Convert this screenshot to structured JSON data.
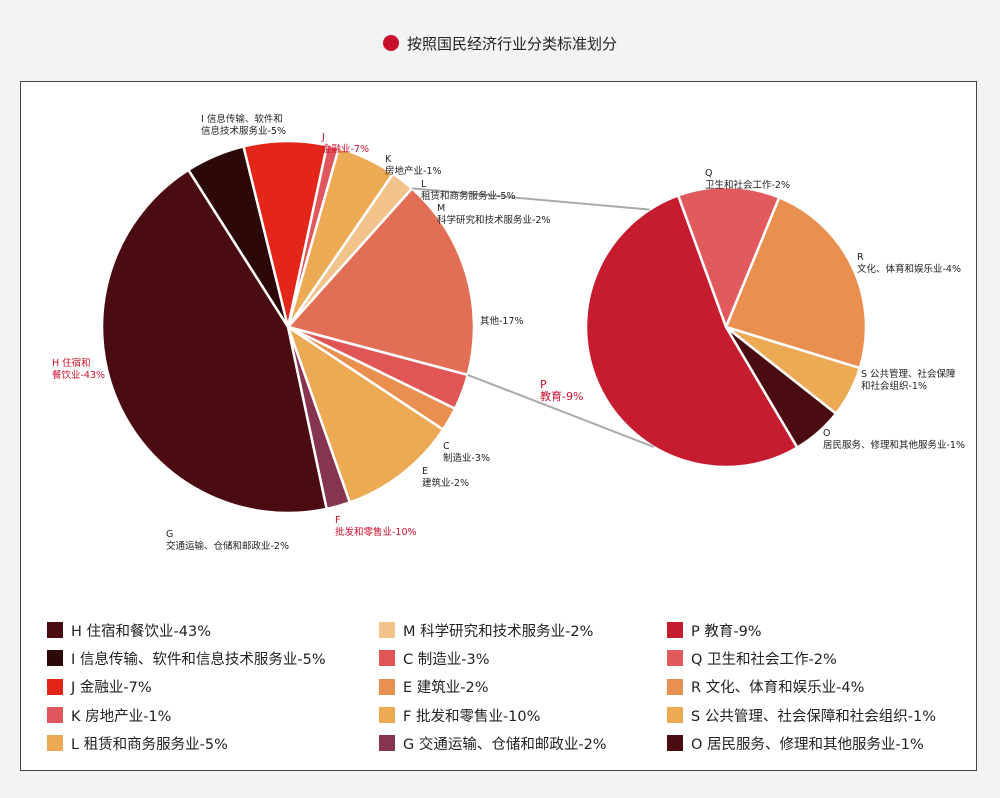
{
  "header": {
    "title": "按照国民经济行业分类标准划分",
    "dot_color": "#c8102e"
  },
  "chart_data": {
    "type": "pie",
    "subtype": "pie-of-pie",
    "title": "按照国民经济行业分类标准划分",
    "main_pie": {
      "slices": [
        {
          "code": "I",
          "label": "I 信息传输、软件和信息技术服务业-5%",
          "chart_label": "I 信息传输、软件和 信息技术服务业-5%",
          "value": 5,
          "color": "#2c0808"
        },
        {
          "code": "J",
          "label": "J 金融业-7%",
          "chart_label": "J 金融业-7%",
          "value": 7,
          "color": "#e32619"
        },
        {
          "code": "K",
          "label": "K 房地产业-1%",
          "chart_label": "K 房地产业-1%",
          "value": 1,
          "color": "#e0565d"
        },
        {
          "code": "L",
          "label": "L 租赁和商务服务业-5%",
          "chart_label": "L 租赁和商务服务业-5%",
          "value": 5,
          "color": "#ecaa55"
        },
        {
          "code": "M",
          "label": "M 科学研究和技术服务业-2%",
          "chart_label": "M 科学研究和技术服务业-2%",
          "value": 2,
          "color": "#f2c38a"
        },
        {
          "code": "other",
          "label": "其他-17%",
          "chart_label": "其他-17%",
          "value": 17,
          "color": "#e26f55"
        },
        {
          "code": "C",
          "label": "C 制造业-3%",
          "chart_label": "C 制造业-3%",
          "value": 3,
          "color": "#e05555"
        },
        {
          "code": "E",
          "label": "E 建筑业-2%",
          "chart_label": "E 建筑业-2%",
          "value": 2,
          "color": "#e98f4f"
        },
        {
          "code": "F",
          "label": "F 批发和零售业-10%",
          "chart_label": "F 批发和零售业-10%",
          "value": 10,
          "color": "#ecaa55"
        },
        {
          "code": "G",
          "label": "G 交通运输、仓储和邮政业-2%",
          "chart_label": "G 交通运输、仓储和邮政业-2%",
          "value": 2,
          "color": "#863450"
        },
        {
          "code": "H",
          "label": "H 住宿和餐饮业-43%",
          "chart_label": "H 住宿和 餐饮业-43%",
          "value": 43,
          "color": "#4a0c11"
        }
      ]
    },
    "secondary_pie": {
      "slices": [
        {
          "code": "Q",
          "label": "Q 卫生和社会工作-2%",
          "chart_label": "Q 卫生和社会工作-2%",
          "value": 2,
          "color": "#e05a5e"
        },
        {
          "code": "R",
          "label": "R 文化、体育和娱乐业-4%",
          "chart_label": "R 文化、体育和娱乐业-4%",
          "value": 4,
          "color": "#e98f4f"
        },
        {
          "code": "S",
          "label": "S 公共管理、社会保障和社会组织-1%",
          "chart_label": "S 公共管理、社会保障 和社会组织-1%",
          "value": 1,
          "color": "#ecaa55"
        },
        {
          "code": "O",
          "label": "O 居民服务、修理和其他服务业-1%",
          "chart_label": "O 居民服务、修理和其他服务业-1%",
          "value": 1,
          "color": "#4a0c11"
        },
        {
          "code": "P",
          "label": "P 教育-9%",
          "chart_label": "P 教育-9%",
          "value": 9,
          "color": "#c61c30"
        }
      ]
    },
    "legend": {
      "columns": [
        [
          {
            "label": "H 住宿和餐饮业-43%",
            "color": "#4a0c11"
          },
          {
            "label": "I 信息传输、软件和信息技术服务业-5%",
            "color": "#2c0808"
          },
          {
            "label": "J 金融业-7%",
            "color": "#e32619"
          },
          {
            "label": "K 房地产业-1%",
            "color": "#e0565d"
          },
          {
            "label": "L 租赁和商务服务业-5%",
            "color": "#ecaa55"
          }
        ],
        [
          {
            "label": "M 科学研究和技术服务业-2%",
            "color": "#f2c38a"
          },
          {
            "label": "C 制造业-3%",
            "color": "#e05555"
          },
          {
            "label": "E 建筑业-2%",
            "color": "#e98f4f"
          },
          {
            "label": "F 批发和零售业-10%",
            "color": "#ecaa55"
          },
          {
            "label": "G 交通运输、仓储和邮政业-2%",
            "color": "#863450"
          }
        ],
        [
          {
            "label": "P 教育-9%",
            "color": "#c61c30"
          },
          {
            "label": "Q 卫生和社会工作-2%",
            "color": "#e05a5e"
          },
          {
            "label": "R 文化、体育和娱乐业-4%",
            "color": "#e98f4f"
          },
          {
            "label": "S 公共管理、社会保障和社会组织-1%",
            "color": "#ecaa55"
          },
          {
            "label": "O 居民服务、修理和其他服务业-1%",
            "color": "#4a0c11"
          }
        ]
      ]
    }
  }
}
